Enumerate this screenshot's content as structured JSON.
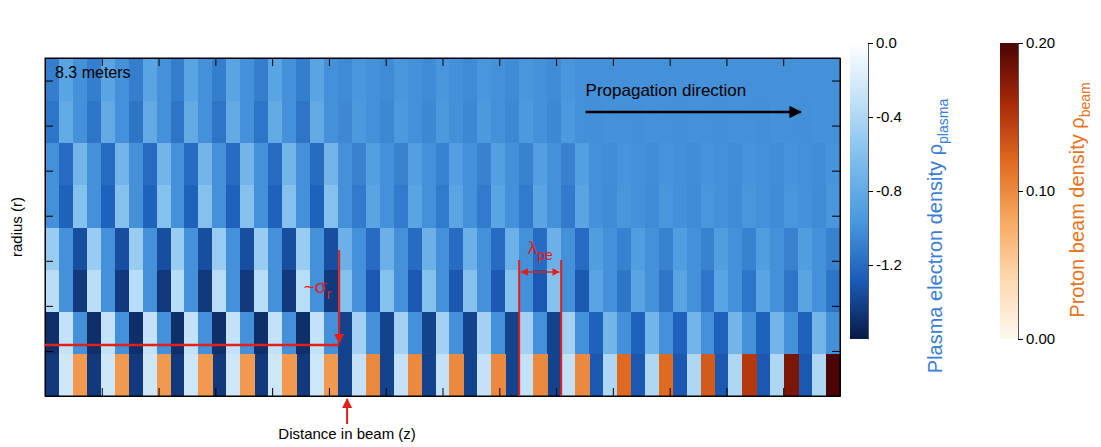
{
  "chart_data": {
    "type": "heatmap",
    "title": "8.3 meters",
    "xlabel": "Distance in beam (z)",
    "ylabel": "radius (r)",
    "xlim": [
      0,
      14
    ],
    "xticks": [
      0,
      1,
      2,
      3,
      4,
      5,
      6,
      7,
      8,
      9,
      10,
      11,
      12,
      13,
      14
    ],
    "ylim": [
      0,
      7.5
    ],
    "yticks": [
      0,
      1,
      2,
      3,
      4,
      5,
      6,
      7
    ],
    "tick_labels": false,
    "annotations": [
      {
        "text": "Propagation direction"
      },
      {
        "text": "~σ",
        "subscript": "r",
        "y": 1.13
      },
      {
        "text": "λ",
        "subscript": "pe",
        "x": [
          8.35,
          9.09
        ]
      }
    ],
    "plasma": {
      "title": "Plasma electron density ρ",
      "title_subscript": "plasma",
      "range": [
        -1.6,
        0
      ],
      "ticks": [
        {
          "value": 0,
          "label": "0.0"
        },
        -0.4,
        -0.8,
        -1.2
      ],
      "cells": [
        [
          -1.45,
          -0.25,
          -0.9,
          -1.45,
          -0.25,
          -0.9,
          -1.45,
          -0.25,
          -0.9,
          -1.45,
          -0.25,
          -0.9,
          -1.45,
          -0.25,
          -0.9,
          -1.45,
          -0.25,
          -0.9,
          -1.45,
          -0.25,
          -0.9,
          -1.4,
          -0.3,
          -0.9,
          -1.4,
          -0.3,
          -0.9,
          -1.4,
          -0.3,
          -0.9,
          -1.4,
          -0.3,
          -0.9,
          -1.4,
          -0.3,
          -0.9,
          -1.4,
          -0.3,
          -0.9,
          -1.3,
          -0.4,
          -0.9,
          -1.3,
          -0.4,
          -0.9,
          -1.3,
          -0.4,
          -0.9,
          -1.3,
          -0.4,
          -0.9,
          -1.3,
          -0.4,
          -0.9,
          -1.3,
          -0.4,
          -0.9
        ],
        [
          -1.5,
          -0.3,
          -1.0,
          -1.5,
          -0.3,
          -1.0,
          -1.5,
          -0.3,
          -1.0,
          -1.5,
          -0.3,
          -1.0,
          -1.5,
          -0.3,
          -1.0,
          -1.5,
          -0.3,
          -1.0,
          -1.5,
          -0.3,
          -1.0,
          -1.4,
          -0.45,
          -1.0,
          -1.4,
          -0.45,
          -1.0,
          -1.4,
          -0.45,
          -1.0,
          -1.4,
          -0.45,
          -1.0,
          -1.4,
          -0.45,
          -1.0,
          -1.4,
          -0.45,
          -1.0,
          -1.25,
          -0.7,
          -1.0,
          -1.25,
          -0.7,
          -1.0,
          -1.25,
          -0.7,
          -1.0,
          -1.25,
          -0.7,
          -1.0,
          -1.25,
          -0.7,
          -1.0,
          -1.25,
          -0.7,
          -1.0
        ],
        [
          -0.35,
          -1.0,
          -1.45,
          -0.35,
          -1.0,
          -1.45,
          -0.35,
          -1.0,
          -1.45,
          -0.35,
          -1.0,
          -1.45,
          -0.35,
          -1.0,
          -1.45,
          -0.35,
          -1.0,
          -1.45,
          -0.35,
          -1.0,
          -1.45,
          -0.6,
          -1.0,
          -1.3,
          -0.6,
          -1.0,
          -1.3,
          -0.6,
          -1.0,
          -1.3,
          -0.6,
          -1.0,
          -1.3,
          -0.6,
          -1.0,
          -1.3,
          -0.6,
          -1.0,
          -1.3,
          -0.85,
          -1.0,
          -1.15,
          -0.85,
          -1.0,
          -1.15,
          -0.85,
          -1.0,
          -1.15,
          -0.85,
          -1.0,
          -1.15,
          -0.85,
          -1.0,
          -1.15,
          -0.85,
          -1.0,
          -1.15
        ],
        [
          -0.5,
          -1.0,
          -1.35,
          -0.5,
          -1.0,
          -1.35,
          -0.5,
          -1.0,
          -1.35,
          -0.5,
          -1.0,
          -1.35,
          -0.5,
          -1.0,
          -1.35,
          -0.5,
          -1.0,
          -1.35,
          -0.5,
          -1.0,
          -1.35,
          -0.75,
          -1.0,
          -1.2,
          -0.75,
          -1.0,
          -1.2,
          -0.75,
          -1.0,
          -1.2,
          -0.75,
          -1.0,
          -1.2,
          -0.75,
          -1.0,
          -1.2,
          -0.75,
          -1.0,
          -1.2,
          -0.92,
          -1.0,
          -1.08,
          -0.92,
          -1.0,
          -1.08,
          -0.92,
          -1.0,
          -1.08,
          -0.92,
          -1.0,
          -1.08,
          -0.92,
          -1.0,
          -1.08,
          -0.92,
          -1.0,
          -1.08
        ],
        [
          -1.0,
          -1.25,
          -0.6,
          -1.0,
          -1.25,
          -0.6,
          -1.0,
          -1.25,
          -0.6,
          -1.0,
          -1.25,
          -0.6,
          -1.0,
          -1.25,
          -0.6,
          -1.0,
          -1.25,
          -0.6,
          -1.0,
          -1.25,
          -0.6,
          -1.0,
          -1.12,
          -0.85,
          -1.0,
          -1.12,
          -0.85,
          -1.0,
          -1.12,
          -0.85,
          -1.0,
          -1.12,
          -0.85,
          -1.0,
          -1.12,
          -0.85,
          -1.0,
          -1.12,
          -0.85,
          -1.0,
          -1.03,
          -0.97,
          -1.0,
          -1.03,
          -0.97,
          -1.0,
          -1.03,
          -0.97,
          -1.0,
          -1.03,
          -0.97,
          -1.0,
          -1.03,
          -0.97,
          -1.0,
          -1.03,
          -0.97
        ],
        [
          -1.0,
          -1.2,
          -0.7,
          -1.0,
          -1.2,
          -0.7,
          -1.0,
          -1.2,
          -0.7,
          -1.0,
          -1.2,
          -0.7,
          -1.0,
          -1.2,
          -0.7,
          -1.0,
          -1.2,
          -0.7,
          -1.0,
          -1.2,
          -0.7,
          -1.0,
          -1.08,
          -0.9,
          -1.0,
          -1.08,
          -0.9,
          -1.0,
          -1.08,
          -0.9,
          -1.0,
          -1.08,
          -0.9,
          -1.0,
          -1.08,
          -0.9,
          -1.0,
          -1.08,
          -0.9,
          -1.0,
          -1.02,
          -0.98,
          -1.0,
          -1.02,
          -0.98,
          -1.0,
          -1.02,
          -0.98,
          -1.0,
          -1.02,
          -0.98,
          -1.0,
          -1.02,
          -0.98,
          -1.0,
          -1.02,
          -0.98
        ],
        [
          -1.15,
          -0.8,
          -1.0,
          -1.15,
          -0.8,
          -1.0,
          -1.15,
          -0.8,
          -1.0,
          -1.15,
          -0.8,
          -1.0,
          -1.15,
          -0.8,
          -1.0,
          -1.15,
          -0.8,
          -1.0,
          -1.15,
          -0.8,
          -1.0,
          -1.05,
          -0.95,
          -1.0,
          -1.05,
          -0.95,
          -1.0,
          -1.05,
          -0.95,
          -1.0,
          -1.05,
          -0.95,
          -1.0,
          -1.05,
          -0.95,
          -1.0,
          -1.05,
          -0.95,
          -1.0,
          -1.01,
          -0.99,
          -1.0,
          -1.01,
          -0.99,
          -1.0,
          -1.01,
          -0.99,
          -1.0,
          -1.01,
          -0.99,
          -1.0,
          -1.01,
          -0.99,
          -1.0,
          -1.01,
          -0.99,
          -1.0
        ],
        [
          -1.1,
          -0.85,
          -1.0,
          -1.1,
          -0.85,
          -1.0,
          -1.1,
          -0.85,
          -1.0,
          -1.1,
          -0.85,
          -1.0,
          -1.1,
          -0.85,
          -1.0,
          -1.1,
          -0.85,
          -1.0,
          -1.1,
          -0.85,
          -1.0,
          -1.03,
          -0.97,
          -1.0,
          -1.03,
          -0.97,
          -1.0,
          -1.03,
          -0.97,
          -1.0,
          -1.03,
          -0.97,
          -1.0,
          -1.03,
          -0.97,
          -1.0,
          -1.03,
          -0.97,
          -1.0,
          -1.0,
          -1.0,
          -1.0,
          -1.0,
          -1.0,
          -1.0,
          -1.0,
          -1.0,
          -1.0,
          -1.0,
          -1.0,
          -1.0,
          -1.0,
          -1.0,
          -1.0,
          -1.0,
          -1.0,
          -1.0
        ]
      ]
    },
    "beam": {
      "title": "Proton beam density ρ",
      "title_subscript": "beam",
      "range": [
        0,
        0.2
      ],
      "ticks": [
        {
          "value": 0,
          "label": "0.00"
        },
        {
          "value": 0.1,
          "label": "0.10"
        },
        {
          "value": 0.2,
          "label": "0.20"
        }
      ],
      "cells": [
        [
          0,
          0,
          0.09,
          0,
          0,
          0.09,
          0,
          0,
          0.09,
          0,
          0,
          0.09,
          0,
          0,
          0.09,
          0,
          0,
          0.09,
          0,
          0,
          0.09,
          0,
          0,
          0.1,
          0,
          0,
          0.1,
          0,
          0,
          0.1,
          0,
          0,
          0.1,
          0,
          0,
          0.1,
          0,
          0,
          0.1,
          0,
          0,
          0.12,
          0,
          0,
          0.12,
          0,
          0,
          0.13,
          0,
          0,
          0.15,
          0,
          0,
          0.18,
          0,
          0,
          0.2
        ]
      ]
    }
  }
}
